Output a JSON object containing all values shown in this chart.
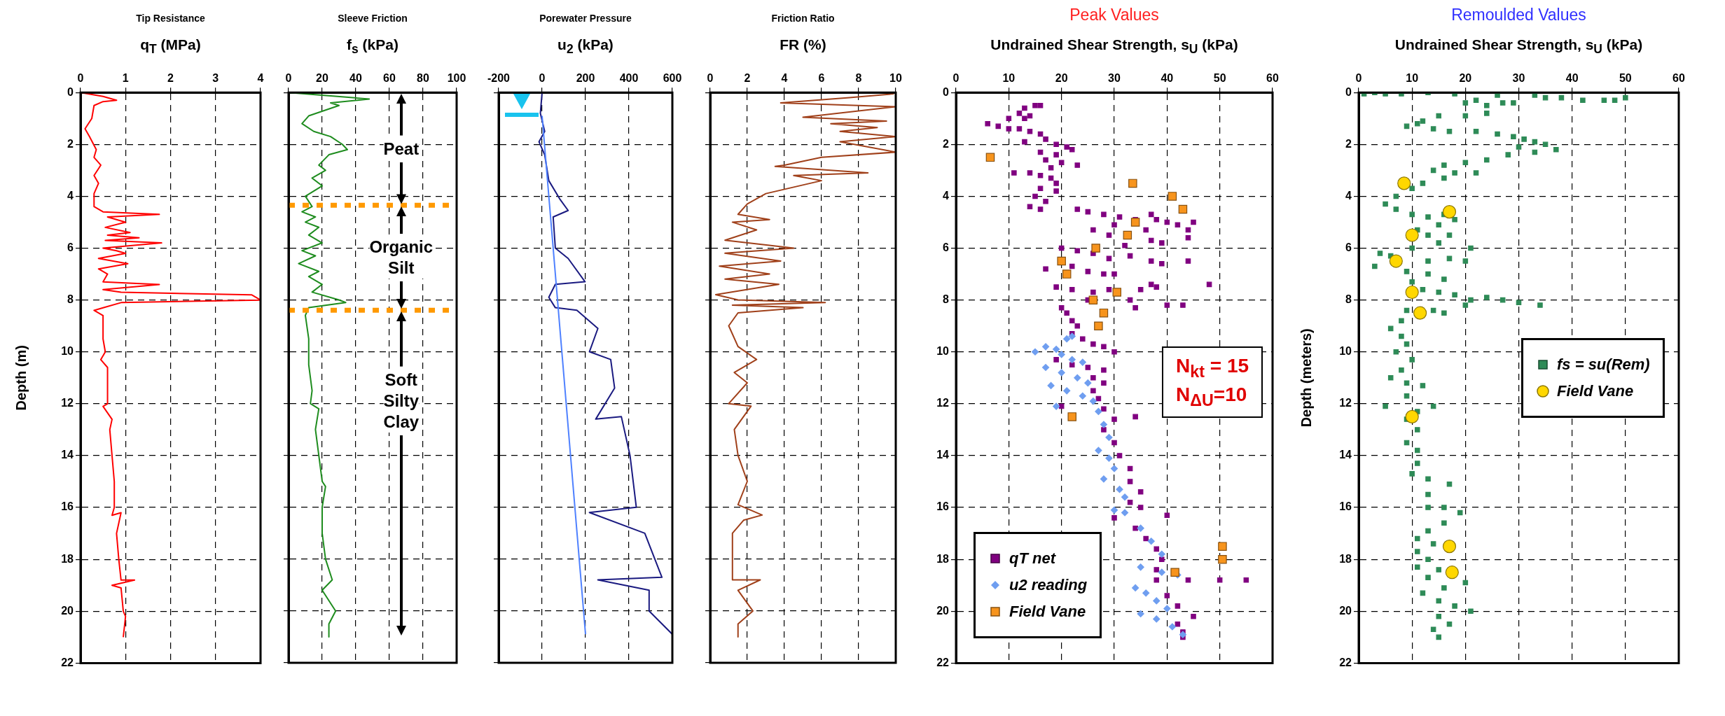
{
  "chart_data": [
    {
      "type": "line",
      "title": "Tip Resistance",
      "xlabel": "q$_{T}$ (MPa)",
      "ylabel": "Depth (m)",
      "xlim": [
        0,
        4
      ],
      "xticks": [
        0,
        1,
        2,
        3,
        4
      ],
      "ylim": [
        22,
        0
      ],
      "yticks": [
        0,
        2,
        4,
        6,
        8,
        10,
        12,
        14,
        16,
        18,
        20,
        22
      ],
      "grid": true,
      "series": [
        {
          "color": "#ff0000",
          "x": [
            0,
            0.5,
            0.8,
            0.5,
            0.3,
            0.25,
            0.1,
            0.2,
            0.35,
            0.3,
            0.45,
            0.3,
            0.4,
            0.3,
            0.3,
            0.5,
            1.75,
            0.6,
            1.0,
            0.55,
            1.1,
            0.6,
            1.3,
            0.55,
            1.8,
            0.5,
            0.8,
            1.0,
            0.4,
            1.05,
            0.4,
            0.6,
            0.5,
            1.75,
            0.5,
            0.9,
            3.8,
            4.0,
            0.9,
            0.5,
            0.3,
            0.5,
            0.5,
            0.55,
            0.45,
            0.6,
            0.6,
            0.5,
            0.7,
            0.65,
            0.7,
            0.75,
            0.75,
            0.7,
            0.9,
            0.8,
            0.85,
            0.9,
            1.2,
            0.7,
            0.9,
            0.95,
            1.0,
            0.95
          ],
          "values": [
            0,
            0.15,
            0.3,
            0.35,
            0.5,
            1,
            1.4,
            1.7,
            2.2,
            2.5,
            2.8,
            3.2,
            3.5,
            3.9,
            4.4,
            4.6,
            4.7,
            4.8,
            5.0,
            5.2,
            5.4,
            5.5,
            5.6,
            5.7,
            5.8,
            6.0,
            6.1,
            6.2,
            6.4,
            6.6,
            6.8,
            7.0,
            7.3,
            7.4,
            7.6,
            7.7,
            7.8,
            8.0,
            8.1,
            8.3,
            8.4,
            8.6,
            9.5,
            10,
            10.3,
            10.6,
            12,
            12.1,
            12.6,
            13,
            14,
            15,
            16,
            16.3,
            16.2,
            17,
            18,
            18.8,
            18.8,
            19.0,
            19.1,
            20,
            20.2,
            21
          ]
        }
      ]
    },
    {
      "type": "line",
      "title": "Sleeve Friction",
      "xlabel": "f$_{s}$ (kPa)",
      "xlim": [
        0,
        100
      ],
      "xticks": [
        0,
        20,
        40,
        60,
        80,
        100
      ],
      "ylim": [
        22,
        0
      ],
      "yticks": [
        0,
        2,
        4,
        6,
        8,
        10,
        12,
        14,
        16,
        18,
        20,
        22
      ],
      "grid": true,
      "tick_labels": "x",
      "series": [
        {
          "color": "#1e8c1e",
          "x": [
            0,
            48,
            25,
            30,
            12,
            8,
            15,
            25,
            32,
            35,
            24,
            18,
            22,
            14,
            20,
            10,
            14,
            8,
            16,
            10,
            18,
            12,
            20,
            8,
            16,
            6,
            18,
            12,
            20,
            14,
            30,
            34,
            12,
            10,
            12,
            12,
            14,
            13,
            18,
            16,
            18,
            20,
            22,
            20,
            20,
            22,
            26,
            20,
            28,
            24,
            24
          ],
          "values": [
            0,
            0.25,
            0.4,
            0.5,
            0.9,
            1.2,
            1.5,
            1.7,
            2.0,
            2.2,
            2.4,
            2.8,
            3.0,
            3.3,
            3.6,
            4.0,
            4.4,
            4.6,
            4.8,
            5.0,
            5.2,
            5.5,
            5.8,
            6.1,
            6.3,
            6.6,
            6.9,
            7.1,
            7.4,
            7.7,
            8.0,
            8.1,
            8.3,
            8.6,
            9.5,
            10.5,
            11.5,
            12,
            12.2,
            13,
            14,
            15,
            15.2,
            16,
            17,
            18,
            18.8,
            19.2,
            20,
            20.5,
            21
          ]
        }
      ],
      "ref_lines": [
        {
          "axis": "y",
          "value": 4.35,
          "color": "#ff9900",
          "line_style": "dotted"
        },
        {
          "axis": "y",
          "value": 8.4,
          "color": "#ff9900",
          "line_style": "dotted"
        }
      ],
      "annotations": [
        "Peat",
        "Organic Silt",
        "Soft Silty Clay"
      ]
    },
    {
      "type": "line",
      "title": "Porewater Pressure",
      "xlabel": "u$_{2}$ (kPa)",
      "xlim": [
        -200,
        600
      ],
      "xticks": [
        -200,
        0,
        200,
        400,
        600
      ],
      "ylim": [
        22,
        0
      ],
      "yticks": [
        0,
        2,
        4,
        6,
        8,
        10,
        12,
        14,
        16,
        18,
        20,
        22
      ],
      "grid": true,
      "tick_labels": "x",
      "series": [
        {
          "color": "#1a1a80",
          "x": [
            0,
            -8,
            12,
            -14,
            12,
            31,
            81,
            120,
            51,
            61,
            120,
            198,
            61,
            31,
            61,
            160,
            257,
            218,
            316,
            334,
            247,
            365,
            405,
            434,
            218,
            473,
            552,
            257,
            493,
            493,
            600
          ],
          "values": [
            0,
            0.8,
            1.5,
            1.9,
            2.4,
            3.4,
            4.1,
            4.55,
            4.8,
            6.0,
            6.4,
            7.3,
            7.4,
            7.9,
            8.3,
            8.4,
            9.1,
            10,
            10.3,
            11.4,
            12.6,
            12.5,
            14,
            16,
            16.2,
            17,
            18.7,
            18.8,
            19.2,
            20,
            20.9
          ]
        },
        {
          "color": "#4f81ff",
          "x": [
            0,
            200
          ],
          "values": [
            0.9,
            20.9
          ]
        }
      ]
    },
    {
      "type": "line",
      "title": "Friction Ratio",
      "xlabel": "FR (%)",
      "xlim": [
        0,
        10
      ],
      "xticks": [
        0,
        2,
        4,
        6,
        8,
        10
      ],
      "ylim": [
        22,
        0
      ],
      "yticks": [
        0,
        2,
        4,
        6,
        8,
        10,
        12,
        14,
        16,
        18,
        20,
        22
      ],
      "grid": true,
      "tick_labels": "x",
      "series": [
        {
          "color": "#a0401a",
          "x": [
            9.9,
            7.5,
            3.8,
            8,
            10,
            5,
            9.5,
            6.5,
            9,
            7,
            10,
            7,
            10,
            6,
            4,
            3.5,
            8.5,
            4.5,
            6,
            3,
            2,
            1.5,
            3.2,
            1.2,
            2.5,
            0.8,
            4.5,
            0.8,
            3.8,
            0.5,
            3.2,
            0.8,
            3.7,
            0.3,
            1.5,
            6.2,
            1.2,
            5,
            1.5,
            1.0,
            1.5,
            2.5,
            1.3,
            2.0,
            1.0,
            2.2,
            1.3,
            1.5,
            2.0,
            1.5,
            2.8,
            1.8,
            1.2,
            1.2,
            2.7,
            1.5,
            2.3,
            1.5,
            1.5
          ],
          "values": [
            0.05,
            0.2,
            0.4,
            0.5,
            0.55,
            0.95,
            1.1,
            1.2,
            1.35,
            1.5,
            1.7,
            1.9,
            2.3,
            2.5,
            2.8,
            2.85,
            3.1,
            3.2,
            3.4,
            3.9,
            4.3,
            4.7,
            4.9,
            5.0,
            5.3,
            5.7,
            6.0,
            6.2,
            6.5,
            6.7,
            7.0,
            7.2,
            7.4,
            7.8,
            8.0,
            8.1,
            8.2,
            8.3,
            8.5,
            9.0,
            9.8,
            10.3,
            10.8,
            11.2,
            12.0,
            12.1,
            13.0,
            14.0,
            15.0,
            15.9,
            16.3,
            16.5,
            17.0,
            18.8,
            18.8,
            19.2,
            20.0,
            20.5,
            21.0
          ]
        }
      ]
    },
    {
      "type": "scatter",
      "title": "Peak Values",
      "xlabel": "Undrained Shear Strength, s$_{U}$ (kPa)",
      "xlim": [
        0,
        60
      ],
      "xticks": [
        0,
        10,
        20,
        30,
        40,
        50,
        60
      ],
      "ylim": [
        22,
        0
      ],
      "yticks": [
        0,
        2,
        4,
        6,
        8,
        10,
        12,
        14,
        16,
        18,
        20,
        22
      ],
      "grid": true,
      "legend": "bottom left",
      "annotations": [
        "N$_{kt}$ = 15",
        "N$_{ΔU}$=10"
      ],
      "series": [
        {
          "name": "qT net",
          "color": "#800080",
          "marker": "square",
          "x": [
            15,
            13,
            16,
            12,
            14,
            10,
            13,
            6,
            8,
            10,
            12,
            14,
            16,
            17,
            13,
            19,
            21,
            22,
            16,
            19,
            17,
            20,
            23,
            18,
            11,
            14,
            16,
            18,
            19,
            16,
            19,
            15,
            17,
            14,
            16,
            23,
            25,
            28,
            31,
            34,
            37,
            38,
            40,
            42,
            45,
            44,
            30,
            26,
            29,
            36,
            37,
            44,
            39,
            32,
            20,
            23,
            26,
            29,
            33,
            37,
            39,
            44,
            17,
            22,
            25,
            28,
            30,
            19,
            22,
            26,
            29,
            35,
            37,
            38,
            48,
            25,
            33,
            34,
            40,
            43,
            20,
            21,
            22,
            23,
            22,
            24,
            26,
            28,
            30,
            19,
            22,
            25,
            28,
            26,
            28,
            26,
            27,
            28,
            20,
            30,
            34,
            28,
            30,
            31,
            33,
            33,
            35,
            33,
            35,
            40,
            30,
            34,
            36,
            38,
            39,
            38,
            38,
            44,
            50,
            55,
            40,
            42,
            45,
            42,
            43,
            43
          ],
          "values": [
            0.5,
            0.6,
            0.5,
            0.8,
            0.9,
            1.0,
            1.0,
            1.2,
            1.3,
            1.4,
            1.4,
            1.5,
            1.6,
            1.8,
            1.9,
            2.0,
            2.1,
            2.2,
            2.3,
            2.4,
            2.6,
            2.7,
            2.8,
            2.9,
            3.1,
            3.1,
            3.2,
            3.3,
            3.5,
            3.7,
            3.8,
            4.0,
            4.2,
            4.4,
            4.5,
            4.5,
            4.6,
            4.7,
            4.8,
            4.9,
            4.7,
            4.9,
            5.0,
            5.1,
            5.0,
            5.3,
            5.1,
            5.3,
            5.5,
            5.3,
            5.7,
            5.6,
            5.8,
            5.9,
            6.0,
            6.1,
            6.2,
            6.4,
            6.3,
            6.5,
            6.6,
            6.5,
            6.8,
            6.7,
            6.9,
            7.0,
            7.0,
            7.5,
            7.6,
            7.7,
            7.6,
            7.6,
            7.4,
            7.5,
            7.4,
            8.0,
            8.0,
            8.3,
            8.2,
            8.2,
            8.3,
            8.5,
            8.8,
            9.0,
            9.3,
            9.5,
            9.7,
            9.8,
            10.0,
            10.3,
            10.5,
            10.6,
            10.7,
            11.0,
            11.2,
            11.5,
            11.8,
            12.2,
            12.1,
            12.6,
            12.5,
            13.0,
            13.5,
            14.0,
            14.5,
            15.0,
            15.4,
            15.8,
            16.0,
            16.3,
            16.4,
            16.8,
            17.2,
            17.6,
            18.0,
            18.4,
            18.8,
            18.8,
            18.8,
            18.8,
            19.4,
            19.8,
            20.2,
            20.5,
            20.8,
            21.0
          ]
        },
        {
          "name": "u2 reading",
          "color": "#6f9ef0",
          "marker": "diamond",
          "x": [
            15,
            17,
            19,
            21,
            22,
            20,
            22,
            24,
            17,
            20,
            23,
            25,
            18,
            21,
            24,
            26,
            19,
            27,
            28,
            29,
            27,
            29,
            30,
            28,
            31,
            32,
            30,
            32,
            35,
            37,
            39,
            35,
            39,
            42,
            34,
            36,
            38,
            40,
            35,
            38,
            41,
            43
          ],
          "values": [
            10.0,
            9.8,
            9.9,
            9.5,
            9.4,
            10.1,
            10.3,
            10.4,
            10.6,
            10.8,
            11.0,
            11.2,
            11.3,
            11.5,
            11.7,
            11.9,
            12.1,
            12.3,
            12.8,
            13.3,
            13.8,
            14.1,
            14.5,
            14.9,
            15.3,
            15.6,
            16.1,
            16.2,
            16.8,
            17.3,
            17.8,
            18.3,
            18.5,
            18.6,
            19.1,
            19.3,
            19.6,
            19.9,
            20.1,
            20.3,
            20.6,
            20.9
          ]
        },
        {
          "name": "Field Vane",
          "color": "#f7941d",
          "marker": "square",
          "x": [
            6.5,
            33.5,
            41,
            43,
            34,
            32.5,
            26.5,
            20,
            21,
            30.5,
            26,
            28,
            27,
            22,
            50.5,
            50.5,
            41.5
          ],
          "values": [
            2.5,
            3.5,
            4.0,
            4.5,
            5.0,
            5.5,
            6.0,
            6.5,
            7.0,
            7.7,
            8.0,
            8.5,
            9.0,
            12.5,
            17.5,
            18.0,
            18.5
          ]
        }
      ]
    },
    {
      "type": "scatter",
      "title": "Remoulded Values",
      "xlabel": "Undrained Shear Strength, s$_{U}$ (kPa)",
      "ylabel": "Depth (meters)",
      "xlim": [
        0,
        60
      ],
      "xticks": [
        0,
        10,
        20,
        30,
        40,
        50,
        60
      ],
      "ylim": [
        22,
        0
      ],
      "yticks": [
        0,
        2,
        4,
        6,
        8,
        10,
        12,
        14,
        16,
        18,
        20,
        22
      ],
      "grid": true,
      "legend": "right",
      "series": [
        {
          "name": "fs = su(Rem)",
          "color": "#2e8b57",
          "marker": "square",
          "x": [
            1,
            3,
            5,
            8,
            13,
            18,
            20,
            22,
            24,
            27,
            29,
            26,
            33,
            35,
            38,
            42,
            46,
            48,
            50,
            24,
            20,
            15,
            12,
            9,
            11,
            14,
            17,
            22,
            26,
            29,
            31,
            33,
            35,
            30,
            33,
            37,
            28,
            24,
            20,
            16,
            14,
            18,
            22,
            16,
            12,
            10,
            7,
            5,
            7,
            10,
            13,
            16,
            18,
            15,
            11,
            13,
            17,
            15,
            21,
            10,
            4,
            6,
            13,
            17,
            20,
            3,
            9,
            13,
            10,
            16,
            12,
            15,
            18,
            21,
            24,
            27,
            30,
            34,
            20,
            9,
            14,
            16,
            8,
            6,
            8,
            9,
            7,
            10,
            8,
            6,
            9,
            12,
            9,
            5,
            11,
            14,
            9,
            11,
            9,
            11,
            11,
            10,
            13,
            17,
            13,
            13,
            16,
            19,
            16,
            13,
            11,
            14,
            11,
            13,
            11,
            15,
            13,
            20,
            16,
            12,
            15,
            18,
            21,
            15,
            17,
            14,
            15
          ],
          "values": [
            0.05,
            0.0,
            0.05,
            0.05,
            0.0,
            0.05,
            0.4,
            0.3,
            0.5,
            0.4,
            0.4,
            0.1,
            0.1,
            0.2,
            0.2,
            0.3,
            0.3,
            0.3,
            0.2,
            0.8,
            0.9,
            0.9,
            1.1,
            1.3,
            1.2,
            1.4,
            1.5,
            1.5,
            1.6,
            1.7,
            1.8,
            1.9,
            2.0,
            2.1,
            2.3,
            2.2,
            2.4,
            2.6,
            2.7,
            2.8,
            3.0,
            3.1,
            3.1,
            3.3,
            3.5,
            3.7,
            4.0,
            4.3,
            4.5,
            4.7,
            4.8,
            4.7,
            4.9,
            5.1,
            5.3,
            5.5,
            5.5,
            5.8,
            6.0,
            6.0,
            6.2,
            6.3,
            6.5,
            6.4,
            6.5,
            6.7,
            6.9,
            7.0,
            7.3,
            7.2,
            7.6,
            7.7,
            7.8,
            8.0,
            7.9,
            8.0,
            8.1,
            8.2,
            8.2,
            8.4,
            8.4,
            8.5,
            8.8,
            9.1,
            9.4,
            9.7,
            10.0,
            10.3,
            10.7,
            11.0,
            11.2,
            11.3,
            11.7,
            12.1,
            12.3,
            12.1,
            12.6,
            13.0,
            13.5,
            13.8,
            14.3,
            14.7,
            14.9,
            15.1,
            15.5,
            16.0,
            16.0,
            16.2,
            16.6,
            16.9,
            17.2,
            17.4,
            17.7,
            18.0,
            18.3,
            18.4,
            18.7,
            18.9,
            19.1,
            19.3,
            19.6,
            19.8,
            20.0,
            20.2,
            20.5,
            20.7,
            21.0
          ]
        },
        {
          "name": "Field Vane",
          "color": "#ffd700",
          "marker": "circle",
          "x": [
            8.5,
            17,
            10,
            7,
            10,
            11.5,
            10,
            17,
            17.5
          ],
          "values": [
            3.5,
            4.6,
            5.5,
            6.5,
            7.7,
            8.5,
            12.5,
            17.5,
            18.5
          ]
        }
      ]
    }
  ]
}
